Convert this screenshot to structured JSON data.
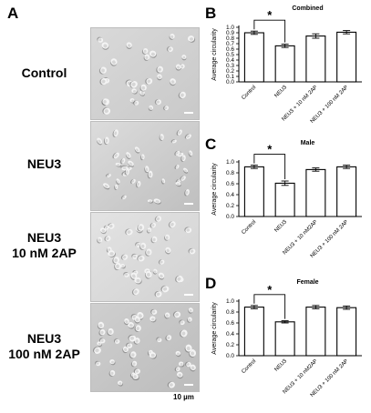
{
  "figure": {
    "panel_a": {
      "letter": "A",
      "rows": [
        {
          "label": "Control",
          "seed": 11
        },
        {
          "label": "NEU3",
          "seed": 23
        },
        {
          "label": "NEU3\n10 nM 2AP",
          "seed": 37
        },
        {
          "label": "NEU3\n100 nM 2AP",
          "seed": 53
        }
      ],
      "scale_label": "10 µm"
    }
  },
  "chart_data": [
    {
      "letter": "B",
      "type": "bar",
      "title": "Combined",
      "ylabel": "Average circularity",
      "xlabel": "",
      "categories": [
        "Control",
        "NEU3",
        "NEU3 + 10 nM 2AP",
        "NEU3 + 100 nM 2AP"
      ],
      "values": [
        0.9,
        0.66,
        0.84,
        0.91
      ],
      "errors": [
        0.03,
        0.03,
        0.04,
        0.03
      ],
      "ylim": [
        0,
        1.0
      ],
      "yticks": [
        "0.0",
        "0.1",
        "0.2",
        "0.3",
        "0.4",
        "0.5",
        "0.6",
        "0.7",
        "0.8",
        "0.9",
        "1.0"
      ],
      "significance": "*"
    },
    {
      "letter": "C",
      "type": "bar",
      "title": "Male",
      "ylabel": "Average circularity",
      "xlabel": "",
      "categories": [
        "Control",
        "NEU3",
        "NEU3 + 10 nM2AP",
        "NEU3 + 100 nM 2AP"
      ],
      "values": [
        0.91,
        0.61,
        0.86,
        0.91
      ],
      "errors": [
        0.03,
        0.04,
        0.03,
        0.03
      ],
      "ylim": [
        0,
        1.0
      ],
      "yticks": [
        "0.0",
        "0.2",
        "0.4",
        "0.6",
        "0.8",
        "1.0"
      ],
      "significance": "*"
    },
    {
      "letter": "D",
      "type": "bar",
      "title": "Female",
      "ylabel": "Average circularity",
      "xlabel": "",
      "categories": [
        "Control",
        "NEU3",
        "NEU3 + 10 nM2AP",
        "NEU3 + 100 nM 2AP"
      ],
      "values": [
        0.89,
        0.62,
        0.89,
        0.88
      ],
      "errors": [
        0.03,
        0.02,
        0.03,
        0.03
      ],
      "ylim": [
        0,
        1.0
      ],
      "yticks": [
        "0.0",
        "0.2",
        "0.4",
        "0.6",
        "0.8",
        "1.0"
      ],
      "significance": "*"
    }
  ]
}
